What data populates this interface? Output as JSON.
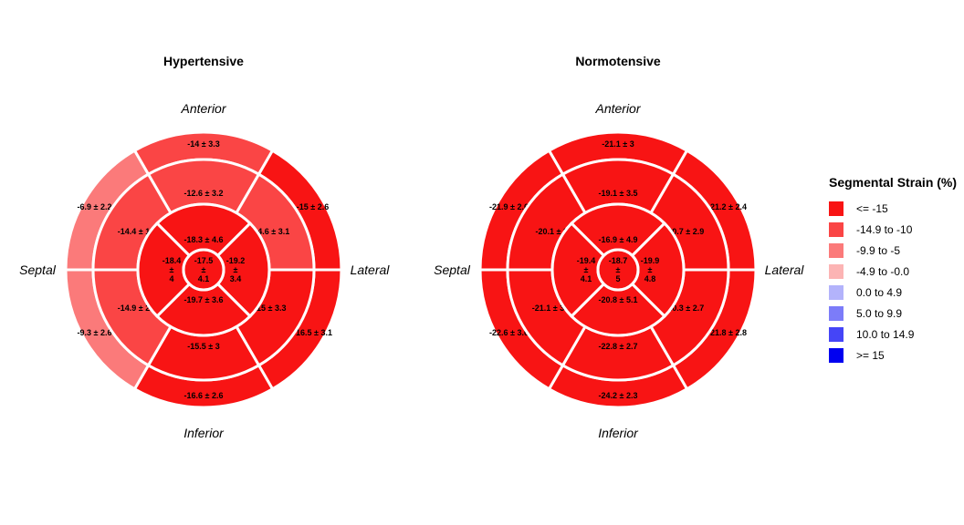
{
  "chart_data": [
    {
      "type": "bullseye",
      "title": "Hypertensive",
      "orientation_labels": {
        "top": "Anterior",
        "bottom": "Inferior",
        "left": "Septal",
        "right": "Lateral"
      },
      "rings": {
        "basal": [
          {
            "label": "-14 ± 3.3",
            "mean": -14.0,
            "sd": 3.3
          },
          {
            "label": "-15 ± 2.6",
            "mean": -15.0,
            "sd": 2.6
          },
          {
            "label": "-16.5 ± 3.1",
            "mean": -16.5,
            "sd": 3.1
          },
          {
            "label": "-16.6 ± 2.6",
            "mean": -16.6,
            "sd": 2.6
          },
          {
            "label": "-9.3 ± 2.6",
            "mean": -9.3,
            "sd": 2.6
          },
          {
            "label": "-6.9 ± 2.2",
            "mean": -6.9,
            "sd": 2.2
          }
        ],
        "mid": [
          {
            "label": "-12.6 ± 3.2",
            "mean": -12.6,
            "sd": 3.2
          },
          {
            "label": "-14.6 ± 3.1",
            "mean": -14.6,
            "sd": 3.1
          },
          {
            "label": "-15 ± 3.3",
            "mean": -15.0,
            "sd": 3.3
          },
          {
            "label": "-15.5 ± 3",
            "mean": -15.5,
            "sd": 3.0
          },
          {
            "label": "-14.9 ± 2.9",
            "mean": -14.9,
            "sd": 2.9
          },
          {
            "label": "-14.4 ± 1.8",
            "mean": -14.4,
            "sd": 1.8
          }
        ],
        "apical": [
          {
            "label": "-18.3 ± 4.6",
            "mean": -18.3,
            "sd": 4.6
          },
          {
            "label": "-19.2 ± 3.4",
            "mean": -19.2,
            "sd": 3.4
          },
          {
            "label": "-19.7 ± 3.6",
            "mean": -19.7,
            "sd": 3.6
          },
          {
            "label": "-18.4 ± 4",
            "mean": -18.4,
            "sd": 4.0
          }
        ],
        "apex": {
          "label": "-17.5 ± 4.1",
          "mean": -17.5,
          "sd": 4.1
        }
      }
    },
    {
      "type": "bullseye",
      "title": "Normotensive",
      "orientation_labels": {
        "top": "Anterior",
        "bottom": "Inferior",
        "left": "Septal",
        "right": "Lateral"
      },
      "rings": {
        "basal": [
          {
            "label": "-21.1 ± 3",
            "mean": -21.1,
            "sd": 3.0
          },
          {
            "label": "-21.2 ± 2.4",
            "mean": -21.2,
            "sd": 2.4
          },
          {
            "label": "-21.8 ± 2.8",
            "mean": -21.8,
            "sd": 2.8
          },
          {
            "label": "-24.2 ± 2.3",
            "mean": -24.2,
            "sd": 2.3
          },
          {
            "label": "-22.6 ± 3.6",
            "mean": -22.6,
            "sd": 3.6
          },
          {
            "label": "-21.9 ± 2.6",
            "mean": -21.9,
            "sd": 2.6
          }
        ],
        "mid": [
          {
            "label": "-19.1 ± 3.5",
            "mean": -19.1,
            "sd": 3.5
          },
          {
            "label": "-20.7 ± 2.9",
            "mean": -20.7,
            "sd": 2.9
          },
          {
            "label": "-20.3 ± 2.7",
            "mean": -20.3,
            "sd": 2.7
          },
          {
            "label": "-22.8 ± 2.7",
            "mean": -22.8,
            "sd": 2.7
          },
          {
            "label": "-21.1 ± 3.1",
            "mean": -21.1,
            "sd": 3.1
          },
          {
            "label": "-20.1 ± 3",
            "mean": -20.1,
            "sd": 3.0
          }
        ],
        "apical": [
          {
            "label": "-16.9 ± 4.9",
            "mean": -16.9,
            "sd": 4.9
          },
          {
            "label": "-19.9 ± 4.8",
            "mean": -19.9,
            "sd": 4.8
          },
          {
            "label": "-20.8 ± 5.1",
            "mean": -20.8,
            "sd": 5.1
          },
          {
            "label": "-19.4 ± 4.1",
            "mean": -19.4,
            "sd": 4.1
          }
        ],
        "apex": {
          "label": "-18.7 ± 5",
          "mean": -18.7,
          "sd": 5.0
        }
      }
    }
  ],
  "legend": {
    "title": "Segmental Strain (%)",
    "placement": "right",
    "items": [
      {
        "label": "<= -15",
        "color": "#F81414",
        "min": null,
        "max": -15
      },
      {
        "label": "-14.9 to -10",
        "color": "#FA4545",
        "min": -14.9,
        "max": -10
      },
      {
        "label": "-9.9 to -5",
        "color": "#FB7A7A",
        "min": -9.9,
        "max": -5
      },
      {
        "label": "-4.9 to -0.0",
        "color": "#FCB4B4",
        "min": -4.9,
        "max": 0
      },
      {
        "label": "0.0 to 4.9",
        "color": "#B3B3FB",
        "min": 0,
        "max": 4.9
      },
      {
        "label": "5.0 to 9.9",
        "color": "#7C7CF9",
        "min": 5,
        "max": 9.9
      },
      {
        "label": "10.0 to 14.9",
        "color": "#4545F7",
        "min": 10,
        "max": 14.9
      },
      {
        "label": ">= 15",
        "color": "#0000F0",
        "min": 15,
        "max": null
      }
    ]
  }
}
